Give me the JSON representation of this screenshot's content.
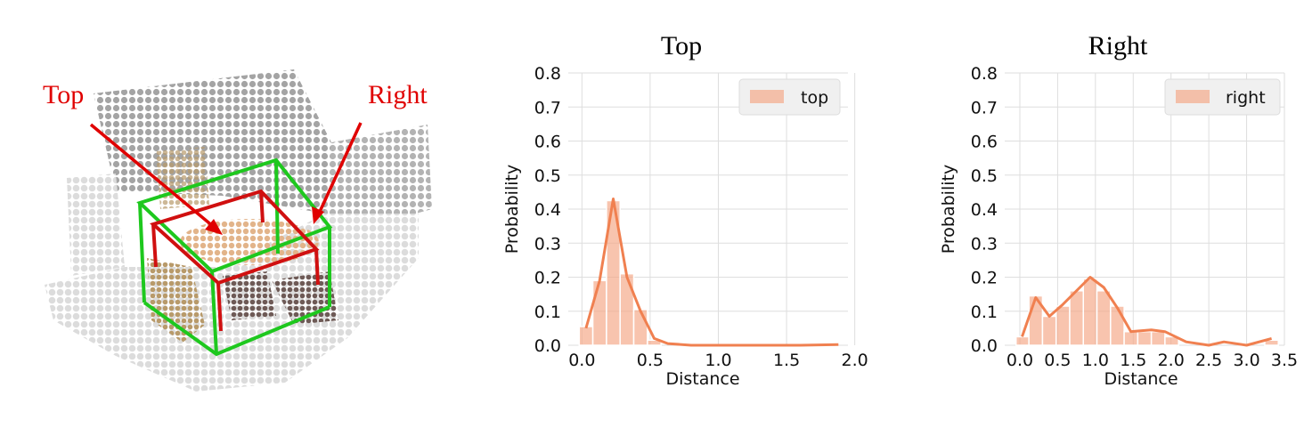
{
  "scene": {
    "label_top": "Top",
    "label_right": "Right"
  },
  "chart_data": [
    {
      "type": "bar",
      "title": "Top",
      "xlabel": "Distance",
      "ylabel": "Probability",
      "xlim": [
        -0.1,
        1.95
      ],
      "ylim": [
        0,
        0.8
      ],
      "xticks": [
        "0.0",
        "0.5",
        "1.0",
        "1.5",
        "2.0"
      ],
      "xtick_values": [
        0.0,
        0.5,
        1.0,
        1.5,
        2.0
      ],
      "yticks": [
        "0.0",
        "0.1",
        "0.2",
        "0.3",
        "0.4",
        "0.5",
        "0.6",
        "0.7",
        "0.8"
      ],
      "ytick_values": [
        0.0,
        0.1,
        0.2,
        0.3,
        0.4,
        0.5,
        0.6,
        0.7,
        0.8
      ],
      "grid": true,
      "legend_position": "top-right",
      "series": [
        {
          "name": "top",
          "color": "#f4a582",
          "line_color": "#f08050",
          "bins": [
            {
              "x0": -0.02,
              "x1": 0.08,
              "value": 0.055
            },
            {
              "x0": 0.08,
              "x1": 0.18,
              "value": 0.19
            },
            {
              "x0": 0.18,
              "x1": 0.28,
              "value": 0.425
            },
            {
              "x0": 0.28,
              "x1": 0.38,
              "value": 0.21
            },
            {
              "x0": 0.38,
              "x1": 0.48,
              "value": 0.105
            },
            {
              "x0": 0.48,
              "x1": 0.58,
              "value": 0.015
            }
          ],
          "curve": [
            {
              "x": 0.03,
              "y": 0.05
            },
            {
              "x": 0.13,
              "y": 0.19
            },
            {
              "x": 0.23,
              "y": 0.43
            },
            {
              "x": 0.33,
              "y": 0.2
            },
            {
              "x": 0.43,
              "y": 0.1
            },
            {
              "x": 0.53,
              "y": 0.02
            },
            {
              "x": 0.63,
              "y": 0.005
            },
            {
              "x": 0.8,
              "y": 0.0
            },
            {
              "x": 1.2,
              "y": 0.0
            },
            {
              "x": 1.6,
              "y": 0.0
            },
            {
              "x": 1.88,
              "y": 0.002
            }
          ]
        }
      ]
    },
    {
      "type": "bar",
      "title": "Right",
      "xlabel": "Distance",
      "ylabel": "Probability",
      "xlim": [
        -0.2,
        3.5
      ],
      "ylim": [
        0,
        0.8
      ],
      "xticks": [
        "0.0",
        "0.5",
        "1.0",
        "1.5",
        "2.0",
        "2.5",
        "3.0",
        "3.5"
      ],
      "xtick_values": [
        0.0,
        0.5,
        1.0,
        1.5,
        2.0,
        2.5,
        3.0,
        3.5
      ],
      "yticks": [
        "0.0",
        "0.1",
        "0.2",
        "0.3",
        "0.4",
        "0.5",
        "0.6",
        "0.7",
        "0.8"
      ],
      "ytick_values": [
        0.0,
        0.1,
        0.2,
        0.3,
        0.4,
        0.5,
        0.6,
        0.7,
        0.8
      ],
      "grid": true,
      "legend_position": "top-right",
      "series": [
        {
          "name": "right",
          "color": "#f4a582",
          "line_color": "#f08050",
          "bins": [
            {
              "x0": -0.05,
              "x1": 0.12,
              "value": 0.025
            },
            {
              "x0": 0.12,
              "x1": 0.3,
              "value": 0.145
            },
            {
              "x0": 0.3,
              "x1": 0.48,
              "value": 0.085
            },
            {
              "x0": 0.48,
              "x1": 0.66,
              "value": 0.115
            },
            {
              "x0": 0.66,
              "x1": 0.84,
              "value": 0.16
            },
            {
              "x0": 0.84,
              "x1": 1.02,
              "value": 0.195
            },
            {
              "x0": 1.02,
              "x1": 1.2,
              "value": 0.16
            },
            {
              "x0": 1.2,
              "x1": 1.38,
              "value": 0.115
            },
            {
              "x0": 1.38,
              "x1": 1.56,
              "value": 0.04
            },
            {
              "x0": 1.56,
              "x1": 1.74,
              "value": 0.04
            },
            {
              "x0": 1.74,
              "x1": 1.92,
              "value": 0.04
            },
            {
              "x0": 1.92,
              "x1": 2.1,
              "value": 0.025
            },
            {
              "x0": 3.24,
              "x1": 3.42,
              "value": 0.015
            }
          ],
          "curve": [
            {
              "x": 0.03,
              "y": 0.025
            },
            {
              "x": 0.21,
              "y": 0.14
            },
            {
              "x": 0.39,
              "y": 0.085
            },
            {
              "x": 0.57,
              "y": 0.12
            },
            {
              "x": 0.93,
              "y": 0.2
            },
            {
              "x": 1.11,
              "y": 0.17
            },
            {
              "x": 1.29,
              "y": 0.11
            },
            {
              "x": 1.47,
              "y": 0.04
            },
            {
              "x": 1.74,
              "y": 0.045
            },
            {
              "x": 1.92,
              "y": 0.04
            },
            {
              "x": 2.2,
              "y": 0.01
            },
            {
              "x": 2.5,
              "y": 0.0
            },
            {
              "x": 2.7,
              "y": 0.01
            },
            {
              "x": 3.0,
              "y": 0.0
            },
            {
              "x": 3.33,
              "y": 0.02
            }
          ]
        }
      ]
    }
  ]
}
